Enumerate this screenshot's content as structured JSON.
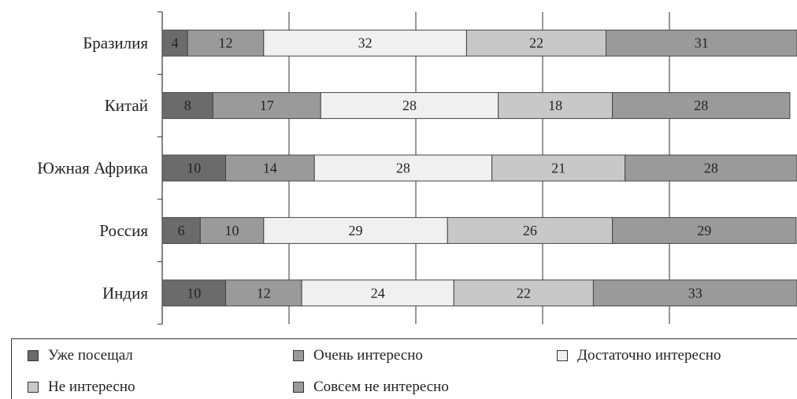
{
  "chart_data": {
    "type": "bar",
    "orientation": "horizontal",
    "stacked": true,
    "categories": [
      "Бразилия",
      "Китай",
      "Южная Африка",
      "Россия",
      "Индия"
    ],
    "series": [
      {
        "name": "Уже посещал",
        "color": "#6b6b6b",
        "values": [
          4,
          8,
          10,
          6,
          10
        ]
      },
      {
        "name": "Очень интересно",
        "color": "#9a9a9a",
        "values": [
          12,
          17,
          14,
          10,
          12
        ]
      },
      {
        "name": "Достаточно интересно",
        "color": "#f0f0f0",
        "values": [
          32,
          28,
          28,
          29,
          24
        ]
      },
      {
        "name": "Не интересно",
        "color": "#c8c8c8",
        "values": [
          22,
          18,
          21,
          26,
          22
        ]
      },
      {
        "name": "Совсем не интересно",
        "color": "#9a9a9a",
        "values": [
          31,
          28,
          28,
          29,
          33
        ]
      }
    ],
    "xlim": [
      0,
      100
    ],
    "grid": true,
    "legend_position": "bottom"
  }
}
